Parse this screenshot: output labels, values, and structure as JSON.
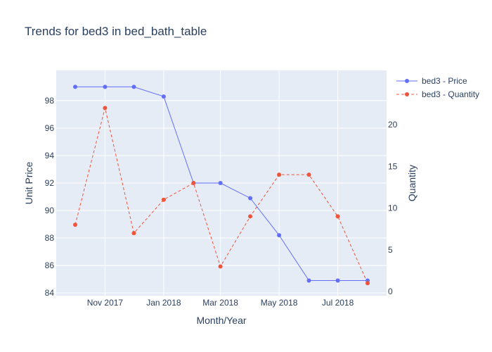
{
  "chart_data": {
    "type": "line",
    "title": "Trends for bed3 in bed_bath_table",
    "xlabel": "Month/Year",
    "ylabel": "Unit Price",
    "y2label": "Quantity",
    "x": [
      "2017-10-01",
      "2017-11-01",
      "2017-12-01",
      "2018-01-01",
      "2018-02-01",
      "2018-03-01",
      "2018-04-01",
      "2018-05-01",
      "2018-06-01",
      "2018-07-01",
      "2018-08-01"
    ],
    "x_ticks": [
      {
        "date": "2017-11-01",
        "label": "Nov 2017"
      },
      {
        "date": "2018-01-01",
        "label": "Jan 2018"
      },
      {
        "date": "2018-03-01",
        "label": "Mar 2018"
      },
      {
        "date": "2018-05-01",
        "label": "May 2018"
      },
      {
        "date": "2018-07-01",
        "label": "Jul 2018"
      }
    ],
    "y_ticks": [
      "84",
      "86",
      "88",
      "90",
      "92",
      "94",
      "96",
      "98"
    ],
    "y2_ticks": [
      "0",
      "5",
      "10",
      "15",
      "20"
    ],
    "ylim": [
      83.8,
      100.2
    ],
    "y2lim": [
      -0.5,
      26.5
    ],
    "series": [
      {
        "name": "bed3 - Price",
        "axis": "y",
        "color": "#636efa",
        "dash": "solid",
        "values": [
          99.0,
          99.0,
          99.0,
          98.3,
          92.0,
          92.0,
          90.9,
          88.2,
          84.9,
          84.9,
          84.9
        ]
      },
      {
        "name": "bed3 - Quantity",
        "axis": "y2",
        "color": "#ef553b",
        "dash": "dash",
        "values": [
          8,
          22,
          7,
          11,
          13,
          3,
          9,
          14,
          14,
          9,
          1
        ]
      }
    ],
    "legend": "top-right",
    "grid": true
  }
}
